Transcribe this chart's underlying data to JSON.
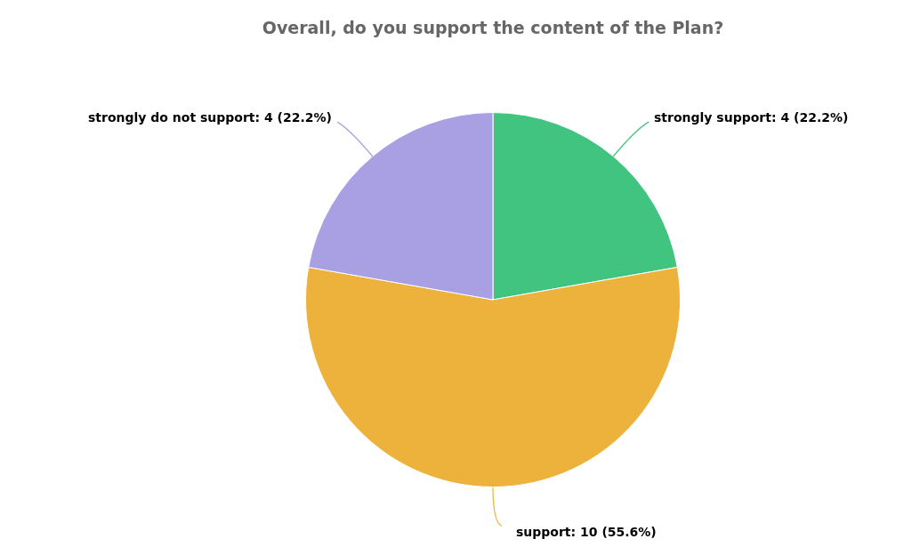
{
  "chart_data": {
    "type": "pie",
    "title": "Overall, do you support the content of the Plan?",
    "categories": [
      "strongly support",
      "support",
      "strongly do not support"
    ],
    "values": [
      4,
      10,
      4
    ],
    "value_labels": [
      "4 (22.2%)",
      "10 (55.6%)",
      "4 (22.2%)"
    ],
    "colors": [
      "#40c47f",
      "#ecb23b",
      "#a99fe3"
    ],
    "legend": false
  }
}
